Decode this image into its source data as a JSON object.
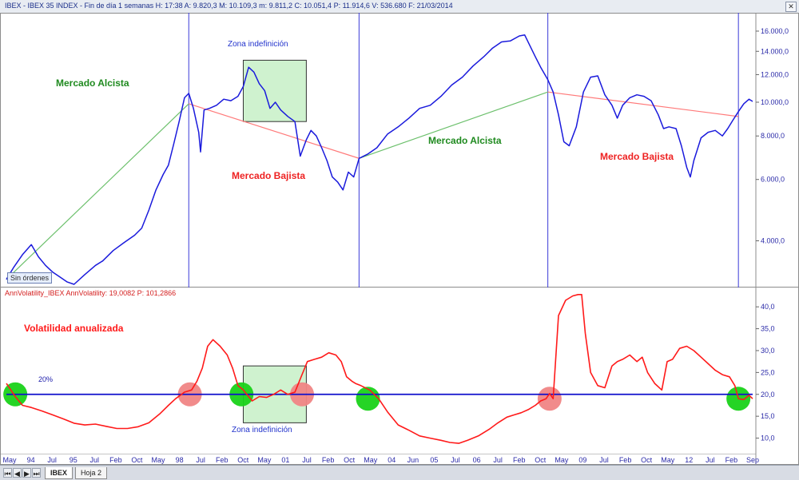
{
  "window": {
    "title": "IBEX - IBEX 35 INDEX - Fin de día 1 semanas  H: 17:38  A: 9.820,3  M: 10.109,3  m: 9.811,2  C: 10.051,4  P: 11.914,6  V: 536.680  F: 21/03/2014",
    "sin_ordenes": "Sin órdenes",
    "volatility_header": "AnnVolatility_IBEX AnnVolatility: 19,0082  P: 101,2866"
  },
  "tabs": [
    {
      "label": "IBEX",
      "active": true
    },
    {
      "label": "Hoja 2",
      "active": false
    }
  ],
  "colors": {
    "price_line": "#1a1adc",
    "volatility_line": "#ff1a1a",
    "bull_label": "#1f8a1f",
    "bear_label": "#ee2222",
    "bull_trend": "#6cc06c",
    "bear_trend": "#ff7a7a",
    "zone_fill": "#cff2cf",
    "low_vol_marker": "#19d219",
    "high_vol_marker": "#f08585",
    "threshold_line": "#1010cc",
    "separator": "#3a3ad8"
  },
  "x_axis": {
    "labels": [
      "May",
      "94",
      "Jul",
      "95",
      "Jul",
      "Feb",
      "Oct",
      "May",
      "98",
      "Jul",
      "Feb",
      "Oct",
      "May",
      "01",
      "Jul",
      "Feb",
      "Oct",
      "May",
      "04",
      "Jun",
      "05",
      "Jul",
      "06",
      "Jul",
      "Feb",
      "Oct",
      "May",
      "09",
      "Jul",
      "Feb",
      "Oct",
      "May",
      "12",
      "Jul",
      "Feb",
      "Sep"
    ]
  },
  "chart_data": [
    {
      "type": "line",
      "name": "price",
      "y_scale": "log",
      "y_ticks": [
        "16.000,0",
        "14.000,0",
        "12.000,0",
        "10.000,0",
        "8.000,0",
        "6.000,0",
        "4.000,0"
      ],
      "y_tick_values": [
        16000,
        14000,
        12000,
        10000,
        8000,
        6000,
        4000
      ],
      "ylim": [
        3000,
        17500
      ],
      "x_domain": [
        1993.3,
        2014.25
      ],
      "series": [
        {
          "x": [
            1993.3,
            1993.5,
            1993.75,
            1994.0,
            1994.2,
            1994.4,
            1994.6,
            1994.8,
            1995.0,
            1995.2,
            1995.5,
            1995.8,
            1996.0,
            1996.3,
            1996.6,
            1996.9,
            1997.1,
            1997.3,
            1997.5,
            1997.7,
            1997.85,
            1998.0,
            1998.15,
            1998.3,
            1998.42,
            1998.55,
            1998.7,
            1998.75,
            1998.85,
            1999.0,
            1999.2,
            1999.4,
            1999.6,
            1999.8,
            1999.95,
            2000.1,
            2000.25,
            2000.4,
            2000.55,
            2000.7,
            2000.85,
            2001.0,
            2001.2,
            2001.4,
            2001.55,
            2001.72,
            2001.85,
            2002.0,
            2002.15,
            2002.3,
            2002.45,
            2002.6,
            2002.75,
            2002.9,
            2003.05,
            2003.2,
            2003.45,
            2003.7,
            2004.0,
            2004.3,
            2004.6,
            2004.9,
            2005.2,
            2005.5,
            2005.8,
            2006.1,
            2006.4,
            2006.7,
            2006.95,
            2007.2,
            2007.45,
            2007.7,
            2007.85,
            2008.0,
            2008.15,
            2008.3,
            2008.5,
            2008.65,
            2008.8,
            2008.95,
            2009.1,
            2009.3,
            2009.5,
            2009.7,
            2009.9,
            2010.1,
            2010.3,
            2010.45,
            2010.6,
            2010.8,
            2011.0,
            2011.2,
            2011.4,
            2011.6,
            2011.75,
            2011.9,
            2012.1,
            2012.25,
            2012.4,
            2012.5,
            2012.6,
            2012.8,
            2013.0,
            2013.2,
            2013.4,
            2013.55,
            2013.7,
            2013.85,
            2014.0,
            2014.15,
            2014.25
          ],
          "y": [
            3100,
            3350,
            3650,
            3900,
            3600,
            3400,
            3250,
            3150,
            3050,
            3000,
            3200,
            3400,
            3500,
            3750,
            3950,
            4150,
            4350,
            4900,
            5600,
            6200,
            6600,
            7600,
            8800,
            10300,
            10600,
            9600,
            8200,
            7200,
            9500,
            9600,
            9800,
            10200,
            10100,
            10400,
            11100,
            12600,
            12200,
            11300,
            10800,
            9600,
            10000,
            9500,
            9100,
            8800,
            7000,
            7800,
            8300,
            8000,
            7400,
            6800,
            6100,
            5900,
            5600,
            6300,
            6100,
            6900,
            7100,
            7400,
            8100,
            8500,
            9000,
            9600,
            9800,
            10400,
            11200,
            11800,
            12700,
            13500,
            14300,
            14900,
            15000,
            15500,
            15600,
            14500,
            13500,
            12600,
            11600,
            10700,
            9200,
            7700,
            7500,
            8500,
            10700,
            11800,
            11900,
            10500,
            9800,
            9000,
            9800,
            10300,
            10500,
            10400,
            10100,
            9200,
            8400,
            8500,
            8400,
            7500,
            6500,
            6100,
            6800,
            7900,
            8200,
            8300,
            8000,
            8400,
            8900,
            9400,
            9900,
            10200,
            10050
          ]
        }
      ],
      "annotations": [
        {
          "text": "Mercado Alcista",
          "kind": "bull"
        },
        {
          "text": "Mercado Bajista",
          "kind": "bear"
        },
        {
          "text": "Zona indefinición",
          "kind": "zone"
        },
        {
          "text": "Mercado Alcista",
          "kind": "bull"
        },
        {
          "text": "Mercado Bajista",
          "kind": "bear"
        }
      ],
      "trend_lines": [
        {
          "kind": "bull",
          "from": [
            1993.3,
            3100
          ],
          "to": [
            1998.42,
            9900
          ]
        },
        {
          "kind": "bear",
          "from": [
            1998.42,
            9900
          ],
          "to": [
            2003.2,
            6900
          ]
        },
        {
          "kind": "bull",
          "from": [
            2003.2,
            6900
          ],
          "to": [
            2008.5,
            10700
          ]
        },
        {
          "kind": "bear",
          "from": [
            2008.5,
            10700
          ],
          "to": [
            2013.85,
            9100
          ]
        }
      ],
      "zone": {
        "x0": 1999.95,
        "x1": 2001.72,
        "y0": 8800,
        "y1": 13200
      },
      "vertical_separators": [
        1998.42,
        2003.2,
        2008.5,
        2013.85
      ]
    },
    {
      "type": "line",
      "name": "volatility",
      "y_ticks": [
        "40,0",
        "35,0",
        "30,0",
        "25,0",
        "20,0",
        "15,0",
        "10,0"
      ],
      "y_tick_values": [
        40,
        35,
        30,
        25,
        20,
        15,
        10
      ],
      "ylim": [
        7,
        43.5
      ],
      "x_domain": [
        1993.3,
        2014.25
      ],
      "threshold": {
        "value": 20,
        "label": "20%"
      },
      "title": "Volatilidad anualizada",
      "zone_label": "Zona indefinición",
      "series": [
        {
          "x": [
            1993.3,
            1993.55,
            1993.75,
            1994.0,
            1994.3,
            1994.6,
            1994.9,
            1995.2,
            1995.5,
            1995.8,
            1996.1,
            1996.4,
            1996.7,
            1997.0,
            1997.3,
            1997.6,
            1997.85,
            1998.05,
            1998.3,
            1998.5,
            1998.65,
            1998.8,
            1998.95,
            1999.1,
            1999.3,
            1999.5,
            1999.65,
            1999.8,
            1999.95,
            2000.05,
            2000.2,
            2000.4,
            2000.6,
            2000.8,
            2001.0,
            2001.2,
            2001.4,
            2001.6,
            2001.75,
            2001.95,
            2002.15,
            2002.35,
            2002.55,
            2002.7,
            2002.85,
            2003.0,
            2003.1,
            2003.25,
            2003.5,
            2003.75,
            2004.0,
            2004.3,
            2004.6,
            2004.9,
            2005.2,
            2005.5,
            2005.75,
            2006.0,
            2006.25,
            2006.55,
            2006.85,
            2007.1,
            2007.35,
            2007.55,
            2007.75,
            2007.95,
            2008.15,
            2008.3,
            2008.45,
            2008.55,
            2008.65,
            2008.8,
            2009.0,
            2009.2,
            2009.35,
            2009.45,
            2009.55,
            2009.7,
            2009.9,
            2010.1,
            2010.3,
            2010.45,
            2010.6,
            2010.8,
            2011.0,
            2011.15,
            2011.3,
            2011.5,
            2011.7,
            2011.85,
            2012.0,
            2012.2,
            2012.4,
            2012.6,
            2012.8,
            2013.0,
            2013.2,
            2013.4,
            2013.6,
            2013.75,
            2013.85,
            2014.0,
            2014.15,
            2014.25
          ],
          "y": [
            22.5,
            19.5,
            17.5,
            17.0,
            16.2,
            15.3,
            14.4,
            13.4,
            13.0,
            13.2,
            12.7,
            12.2,
            12.2,
            12.6,
            13.5,
            15.5,
            17.5,
            19.0,
            20.5,
            21.0,
            23.0,
            26.0,
            31.0,
            32.5,
            31.0,
            29.0,
            26.0,
            22.0,
            21.0,
            20.0,
            18.5,
            19.5,
            19.3,
            20.0,
            21.0,
            20.0,
            20.5,
            24.5,
            27.5,
            28.0,
            28.5,
            29.5,
            29.0,
            27.5,
            24.0,
            23.0,
            22.5,
            22.0,
            21.0,
            19.0,
            16.0,
            13.0,
            11.8,
            10.5,
            10.0,
            9.5,
            9.0,
            8.8,
            9.5,
            10.5,
            12.0,
            13.5,
            14.8,
            15.3,
            15.8,
            16.5,
            17.5,
            18.5,
            19.0,
            20.2,
            19.0,
            38.0,
            41.5,
            42.5,
            42.8,
            42.8,
            34.0,
            25.0,
            22.0,
            21.5,
            26.5,
            27.5,
            28.0,
            29.0,
            27.5,
            28.5,
            25.0,
            22.5,
            21.0,
            27.5,
            28.0,
            30.5,
            31.0,
            30.0,
            28.5,
            27.0,
            25.5,
            24.5,
            24.0,
            22.0,
            19.0,
            18.8,
            19.8,
            19.0
          ]
        }
      ],
      "markers": [
        {
          "x": 1993.55,
          "y": 20,
          "kind": "low"
        },
        {
          "x": 1998.45,
          "y": 20,
          "kind": "high"
        },
        {
          "x": 1999.9,
          "y": 20,
          "kind": "low"
        },
        {
          "x": 2001.6,
          "y": 20,
          "kind": "high"
        },
        {
          "x": 2003.45,
          "y": 19,
          "kind": "low"
        },
        {
          "x": 2008.55,
          "y": 19,
          "kind": "high"
        },
        {
          "x": 2013.85,
          "y": 19,
          "kind": "low"
        }
      ],
      "zone": {
        "x0": 1999.95,
        "x1": 2001.72,
        "y0": 13.5,
        "y1": 26.5
      }
    }
  ]
}
